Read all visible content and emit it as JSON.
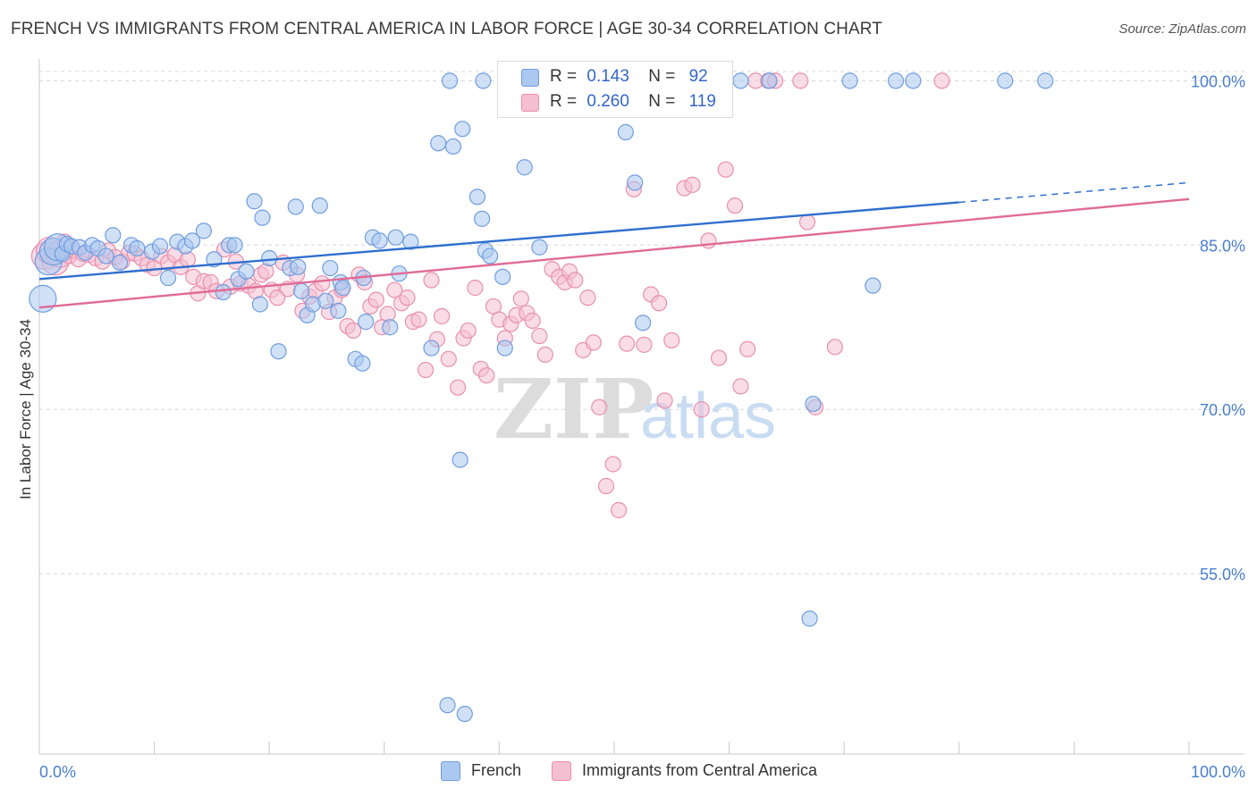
{
  "title": "FRENCH VS IMMIGRANTS FROM CENTRAL AMERICA IN LABOR FORCE | AGE 30-34 CORRELATION CHART",
  "source": "Source: ZipAtlas.com",
  "watermark": "ZIPatlas",
  "colors": {
    "blue_fill": "#aac8f0",
    "blue_stroke": "#6f9de0",
    "blue_line": "#2f6fcf",
    "pink_fill": "#f4bfd1",
    "pink_stroke": "#e98fae",
    "pink_line": "#e06b97",
    "axis_label": "#4a7fd0"
  },
  "legend": {
    "french": {
      "r_label": "R =",
      "r_value": "0.143",
      "n_label": "N =",
      "n_value": "92"
    },
    "immigrants": {
      "r_label": "R =",
      "r_value": "0.260",
      "n_label": "N =",
      "n_value": "119"
    }
  },
  "bottom_legend": {
    "french": "French",
    "immigrants": "Immigrants from Central America"
  },
  "chart_data": {
    "type": "scatter",
    "title": "FRENCH VS IMMIGRANTS FROM CENTRAL AMERICA IN LABOR FORCE | AGE 30-34 CORRELATION CHART",
    "ylabel": "In Labor Force | Age 30-34",
    "xlabel": "",
    "xlim": [
      0,
      100
    ],
    "ylim": [
      40,
      101.5
    ],
    "x_tick_labels": [
      "0.0%",
      "100.0%"
    ],
    "y_ticks": [
      55,
      70,
      85,
      100
    ],
    "y_tick_labels": [
      "55.0%",
      "70.0%",
      "85.0%",
      "100.0%"
    ],
    "grid": true,
    "series": [
      {
        "name": "French",
        "trend": {
          "x": [
            0,
            80,
            100
          ],
          "y": [
            81.9,
            88.9,
            90.7
          ],
          "dashed_from": 80
        },
        "points": [
          [
            0.3,
            80.1
          ],
          [
            0.8,
            83.5
          ],
          [
            1.2,
            84.4
          ],
          [
            1.6,
            84.8
          ],
          [
            2.0,
            84.2
          ],
          [
            2.4,
            85.1
          ],
          [
            2.8,
            84.9
          ],
          [
            3.5,
            84.8
          ],
          [
            4.0,
            84.3
          ],
          [
            4.6,
            85.0
          ],
          [
            5.1,
            84.7
          ],
          [
            5.8,
            84.0
          ],
          [
            6.4,
            85.9
          ],
          [
            7.0,
            83.4
          ],
          [
            8.0,
            85.0
          ],
          [
            8.5,
            84.7
          ],
          [
            9.8,
            84.4
          ],
          [
            10.5,
            84.9
          ],
          [
            11.2,
            82.0
          ],
          [
            12.0,
            85.3
          ],
          [
            12.7,
            84.9
          ],
          [
            13.3,
            85.4
          ],
          [
            14.3,
            86.3
          ],
          [
            15.2,
            83.7
          ],
          [
            16.0,
            80.7
          ],
          [
            16.5,
            85.0
          ],
          [
            17.0,
            85.0
          ],
          [
            17.3,
            81.9
          ],
          [
            18.0,
            82.6
          ],
          [
            18.7,
            89.0
          ],
          [
            19.2,
            79.6
          ],
          [
            19.4,
            87.5
          ],
          [
            20.0,
            83.8
          ],
          [
            20.8,
            75.3
          ],
          [
            21.8,
            82.9
          ],
          [
            22.3,
            88.5
          ],
          [
            22.5,
            83.0
          ],
          [
            22.8,
            80.8
          ],
          [
            23.3,
            78.6
          ],
          [
            23.8,
            79.6
          ],
          [
            24.4,
            88.6
          ],
          [
            24.9,
            79.9
          ],
          [
            25.3,
            82.9
          ],
          [
            26.2,
            81.6
          ],
          [
            26.0,
            79.0
          ],
          [
            26.4,
            81.1
          ],
          [
            27.5,
            74.6
          ],
          [
            28.1,
            74.2
          ],
          [
            28.4,
            78.0
          ],
          [
            28.2,
            82.0
          ],
          [
            29.0,
            85.7
          ],
          [
            29.6,
            85.4
          ],
          [
            30.5,
            77.5
          ],
          [
            31.3,
            82.4
          ],
          [
            32.3,
            85.3
          ],
          [
            31.0,
            85.7
          ],
          [
            34.1,
            75.6
          ],
          [
            34.7,
            94.3
          ],
          [
            35.7,
            100.0
          ],
          [
            36.8,
            95.6
          ],
          [
            36.0,
            94.0
          ],
          [
            36.6,
            65.4
          ],
          [
            38.1,
            89.4
          ],
          [
            38.5,
            87.4
          ],
          [
            38.8,
            84.5
          ],
          [
            39.2,
            84.0
          ],
          [
            40.3,
            82.1
          ],
          [
            40.5,
            75.6
          ],
          [
            37.0,
            42.2
          ],
          [
            35.5,
            43.0
          ],
          [
            38.6,
            100.0
          ],
          [
            42.2,
            92.1
          ],
          [
            43.5,
            84.8
          ],
          [
            45.0,
            100.0
          ],
          [
            41.5,
            100.0
          ],
          [
            50.2,
            100.0
          ],
          [
            51.0,
            95.3
          ],
          [
            51.8,
            90.7
          ],
          [
            52.5,
            77.9
          ],
          [
            58.0,
            100.0
          ],
          [
            58.8,
            100.0
          ],
          [
            61.0,
            100.0
          ],
          [
            63.5,
            100.0
          ],
          [
            67.3,
            70.5
          ],
          [
            70.5,
            100.0
          ],
          [
            72.5,
            81.3
          ],
          [
            74.5,
            100.0
          ],
          [
            76.0,
            100.0
          ],
          [
            87.5,
            100.0
          ],
          [
            84.0,
            100.0
          ],
          [
            50.5,
            100.0
          ],
          [
            67.0,
            50.9
          ]
        ]
      },
      {
        "name": "Immigrants from Central America",
        "trend": {
          "x": [
            0,
            100
          ],
          "y": [
            79.3,
            89.2
          ]
        },
        "points": [
          [
            0.5,
            84.0
          ],
          [
            0.9,
            84.5
          ],
          [
            1.4,
            83.5
          ],
          [
            1.8,
            84.2
          ],
          [
            2.2,
            85.3
          ],
          [
            2.6,
            84.0
          ],
          [
            3.0,
            84.5
          ],
          [
            3.4,
            83.7
          ],
          [
            3.8,
            84.2
          ],
          [
            4.3,
            84.1
          ],
          [
            4.9,
            83.8
          ],
          [
            5.5,
            83.5
          ],
          [
            6.0,
            84.5
          ],
          [
            6.6,
            83.9
          ],
          [
            7.2,
            83.5
          ],
          [
            7.8,
            84.3
          ],
          [
            8.3,
            84.2
          ],
          [
            8.9,
            83.8
          ],
          [
            9.4,
            83.2
          ],
          [
            10.0,
            82.9
          ],
          [
            10.6,
            84.0
          ],
          [
            11.2,
            83.4
          ],
          [
            11.8,
            84.1
          ],
          [
            12.3,
            83.0
          ],
          [
            12.9,
            83.7
          ],
          [
            13.4,
            82.1
          ],
          [
            13.8,
            80.6
          ],
          [
            14.3,
            81.7
          ],
          [
            14.9,
            81.6
          ],
          [
            15.4,
            80.8
          ],
          [
            16.1,
            84.6
          ],
          [
            16.6,
            81.2
          ],
          [
            17.1,
            83.5
          ],
          [
            17.5,
            81.5
          ],
          [
            18.2,
            81.3
          ],
          [
            18.8,
            80.8
          ],
          [
            19.3,
            82.3
          ],
          [
            19.7,
            82.6
          ],
          [
            20.2,
            80.9
          ],
          [
            20.7,
            80.2
          ],
          [
            21.2,
            83.4
          ],
          [
            21.6,
            81.0
          ],
          [
            22.4,
            82.3
          ],
          [
            22.9,
            79.0
          ],
          [
            23.5,
            80.3
          ],
          [
            24.0,
            80.8
          ],
          [
            24.6,
            81.5
          ],
          [
            25.2,
            78.9
          ],
          [
            25.7,
            80.2
          ],
          [
            26.3,
            80.9
          ],
          [
            26.8,
            77.6
          ],
          [
            27.3,
            77.2
          ],
          [
            27.8,
            82.3
          ],
          [
            28.3,
            81.6
          ],
          [
            28.8,
            79.4
          ],
          [
            29.3,
            80.0
          ],
          [
            29.8,
            77.5
          ],
          [
            30.3,
            78.7
          ],
          [
            30.9,
            80.9
          ],
          [
            31.5,
            79.7
          ],
          [
            32.0,
            80.2
          ],
          [
            32.5,
            78.0
          ],
          [
            33.0,
            78.2
          ],
          [
            33.6,
            73.6
          ],
          [
            34.1,
            81.8
          ],
          [
            34.6,
            76.4
          ],
          [
            35.0,
            78.5
          ],
          [
            35.6,
            74.6
          ],
          [
            36.4,
            72.0
          ],
          [
            36.9,
            76.5
          ],
          [
            37.3,
            77.2
          ],
          [
            37.9,
            81.1
          ],
          [
            38.4,
            73.7
          ],
          [
            38.9,
            73.1
          ],
          [
            39.5,
            79.4
          ],
          [
            40.0,
            78.2
          ],
          [
            40.5,
            76.5
          ],
          [
            41.0,
            77.8
          ],
          [
            41.5,
            78.6
          ],
          [
            41.9,
            80.1
          ],
          [
            42.4,
            78.8
          ],
          [
            42.9,
            78.1
          ],
          [
            43.5,
            76.7
          ],
          [
            44.0,
            75.0
          ],
          [
            44.6,
            82.8
          ],
          [
            45.2,
            82.1
          ],
          [
            45.7,
            81.6
          ],
          [
            46.1,
            82.6
          ],
          [
            46.6,
            81.8
          ],
          [
            47.3,
            75.4
          ],
          [
            47.7,
            80.2
          ],
          [
            48.2,
            76.1
          ],
          [
            48.7,
            70.2
          ],
          [
            49.3,
            63.0
          ],
          [
            49.9,
            65.0
          ],
          [
            50.4,
            60.8
          ],
          [
            51.1,
            76.0
          ],
          [
            51.7,
            90.1
          ],
          [
            52.6,
            75.9
          ],
          [
            53.2,
            80.5
          ],
          [
            53.9,
            79.7
          ],
          [
            54.4,
            70.8
          ],
          [
            55.0,
            76.3
          ],
          [
            56.1,
            90.2
          ],
          [
            56.8,
            90.5
          ],
          [
            57.6,
            70.0
          ],
          [
            58.2,
            85.4
          ],
          [
            59.1,
            74.7
          ],
          [
            59.7,
            91.9
          ],
          [
            60.5,
            88.6
          ],
          [
            61.0,
            72.1
          ],
          [
            61.6,
            75.5
          ],
          [
            62.3,
            100.0
          ],
          [
            63.4,
            100.0
          ],
          [
            64.0,
            100.0
          ],
          [
            67.5,
            70.2
          ],
          [
            66.2,
            100.0
          ],
          [
            66.8,
            87.1
          ],
          [
            69.2,
            75.7
          ],
          [
            78.5,
            100.0
          ]
        ]
      }
    ]
  }
}
